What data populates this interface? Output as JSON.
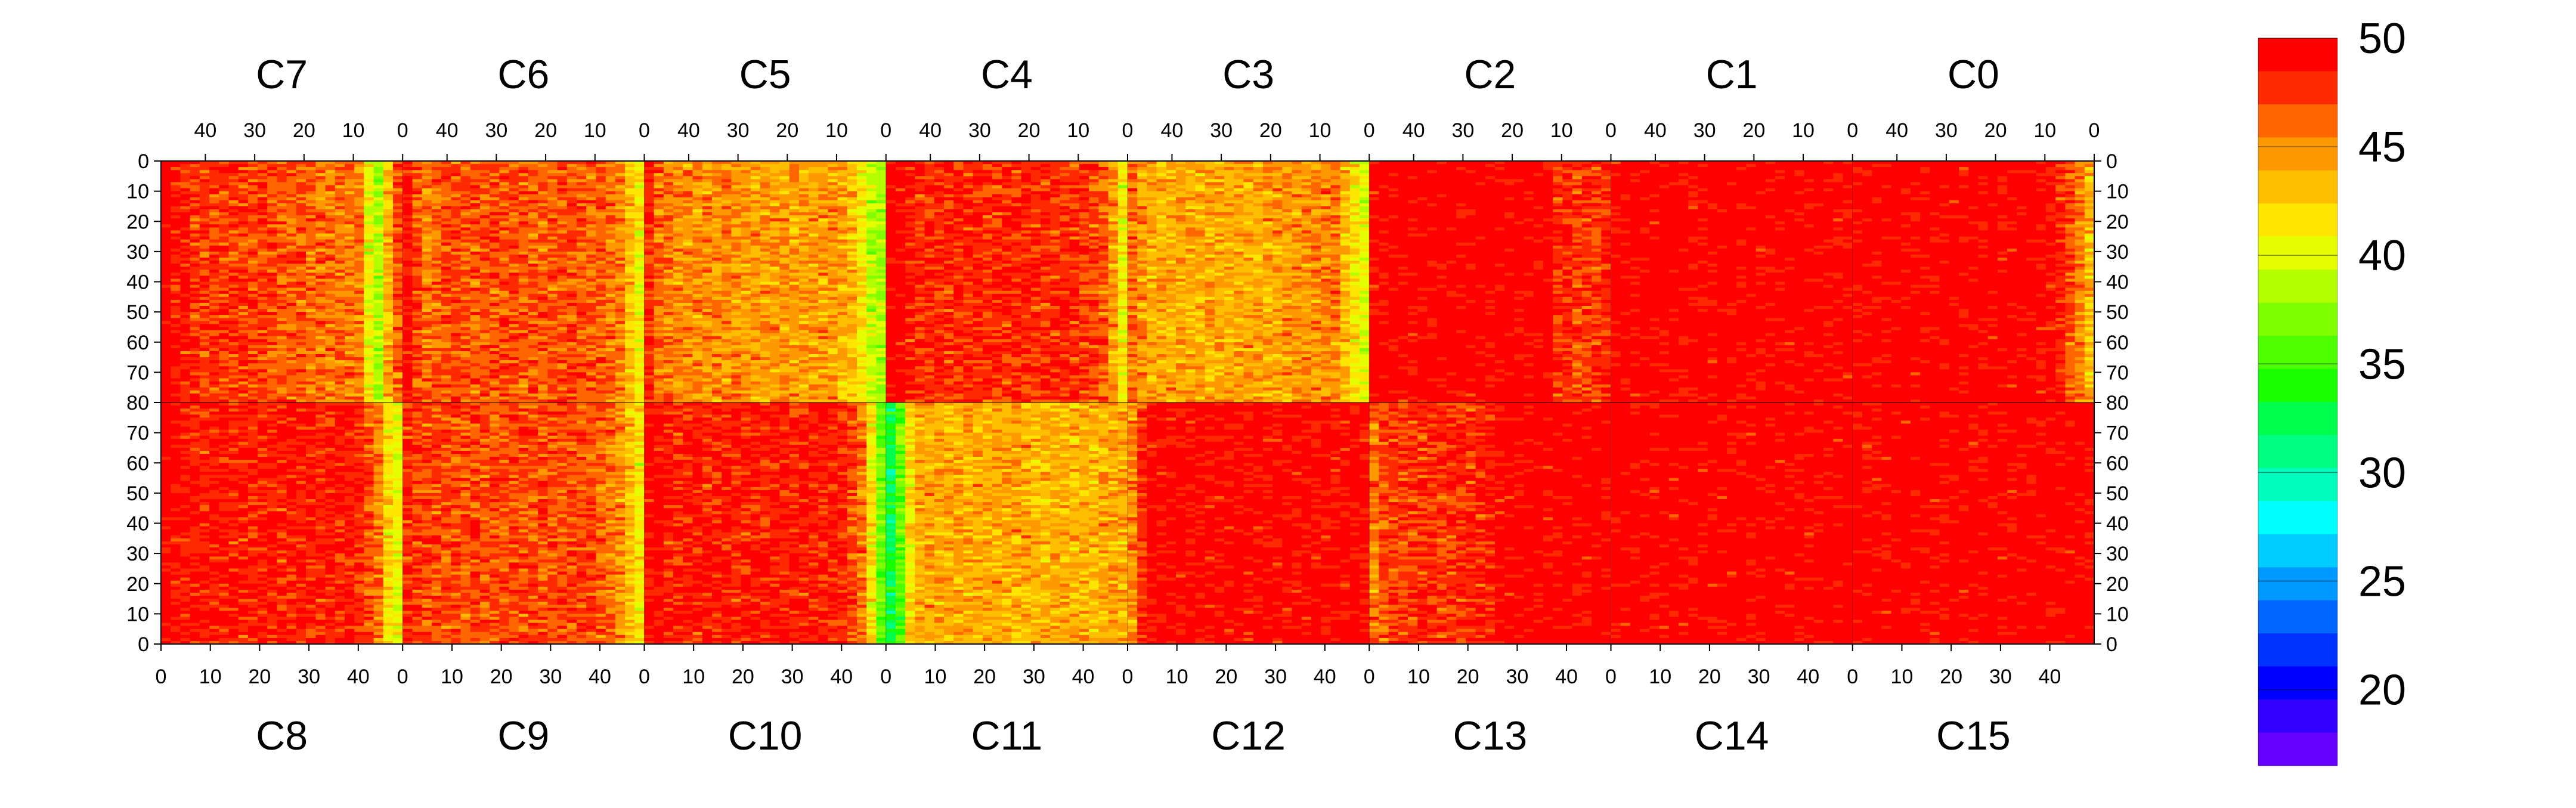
{
  "chart_data": {
    "type": "heatmap",
    "title": "",
    "xlabel": "",
    "ylabel": "",
    "grid": false,
    "legend": "colorbar-right",
    "top_row": {
      "modules": [
        "C7",
        "C6",
        "C5",
        "C4",
        "C3",
        "C2",
        "C1",
        "C0"
      ],
      "x_ticks": [
        "40",
        "30",
        "20",
        "10",
        "0"
      ],
      "y_ticks": [
        "0",
        "10",
        "20",
        "30",
        "40",
        "50",
        "60",
        "70",
        "80"
      ],
      "x_range": [
        49,
        0
      ],
      "y_range": [
        0,
        80
      ]
    },
    "bottom_row": {
      "modules": [
        "C8",
        "C9",
        "C10",
        "C11",
        "C12",
        "C13",
        "C14",
        "C15"
      ],
      "x_ticks": [
        "0",
        "10",
        "20",
        "30",
        "40"
      ],
      "y_ticks": [
        "80",
        "70",
        "60",
        "50",
        "40",
        "30",
        "20",
        "10",
        "0"
      ],
      "x_range": [
        0,
        49
      ],
      "y_range": [
        80,
        0
      ]
    },
    "colorbar": {
      "min": 16.5,
      "max": 50,
      "tick_labels": [
        "50",
        "45",
        "40",
        "35",
        "30",
        "25",
        "20"
      ],
      "colors": [
        "#ff0000",
        "#ff2a00",
        "#ff6600",
        "#ff9900",
        "#ffbf00",
        "#ffe600",
        "#e6ff00",
        "#b3ff00",
        "#80ff00",
        "#4dff00",
        "#19ff00",
        "#00ff4d",
        "#00ff80",
        "#00ffbf",
        "#00ffff",
        "#00ccff",
        "#0099ff",
        "#0066ff",
        "#0033ff",
        "#0000ff",
        "#3300ff",
        "#6600ff"
      ]
    },
    "column_sampling_step": 2,
    "module_fields": [
      {
        "name": "C7",
        "profile": [
          50,
          49,
          48.5,
          48,
          47.5,
          47.5,
          47.5,
          47.5,
          47.5,
          47,
          47,
          47,
          46.5,
          46.5,
          46.5,
          46,
          46,
          46,
          46,
          45.5,
          45.5,
          40.5,
          38.5,
          43.5,
          46.5
        ]
      },
      {
        "name": "C6",
        "profile": [
          49,
          47,
          46,
          46.5,
          47,
          47,
          46.5,
          46.5,
          46.5,
          47,
          47,
          47,
          46.5,
          46.5,
          46.5,
          46.5,
          47,
          47,
          46.5,
          46.5,
          46.5,
          46,
          45.5,
          43,
          41
        ]
      },
      {
        "name": "C5",
        "profile": [
          48,
          46,
          45.5,
          45,
          45,
          45,
          45,
          45,
          45,
          45,
          44.5,
          44.5,
          44.5,
          44.5,
          44.5,
          44.5,
          44.5,
          44.5,
          44.5,
          44.5,
          44,
          43.5,
          41.5,
          39,
          38
        ]
      },
      {
        "name": "C4",
        "profile": [
          50,
          50,
          48.5,
          48,
          48,
          48,
          48,
          48,
          48,
          48,
          48,
          48,
          48,
          48,
          48,
          48,
          48,
          48,
          48,
          48,
          47.5,
          47,
          46.5,
          44.5,
          41
        ]
      },
      {
        "name": "C3",
        "profile": [
          46,
          44.5,
          44,
          44,
          44,
          44,
          44,
          44,
          44,
          44,
          44,
          44,
          44,
          44,
          44.5,
          44.5,
          44.5,
          44.5,
          44.5,
          45,
          45,
          45.5,
          43.5,
          41.5,
          40
        ]
      },
      {
        "name": "C2",
        "profile": [
          50,
          50,
          50,
          50,
          50,
          50,
          50,
          50,
          50,
          50,
          50,
          50,
          50,
          50,
          50,
          50,
          50,
          50,
          50,
          48,
          48,
          47.5,
          47.5,
          47.5,
          48
        ]
      },
      {
        "name": "C1",
        "profile": [
          50,
          50,
          50,
          50,
          50,
          50,
          50,
          50,
          50,
          50,
          50,
          50,
          50,
          50,
          50,
          50,
          50,
          50,
          50,
          50,
          50,
          50,
          50,
          49.5,
          49.5
        ]
      },
      {
        "name": "C0",
        "profile": [
          50,
          50,
          50,
          50,
          50,
          50,
          50,
          50,
          50,
          50,
          50,
          50,
          50,
          50,
          50,
          50,
          50,
          50,
          50,
          49.5,
          49,
          48.5,
          47,
          45.5,
          43.5
        ]
      },
      {
        "name": "C8",
        "profile": [
          50,
          49.5,
          49,
          48.5,
          48.5,
          48.5,
          48.5,
          48.5,
          48.5,
          48.5,
          48.5,
          48.5,
          48.5,
          48.5,
          48.5,
          48.5,
          48.5,
          48.5,
          48.5,
          48.5,
          48,
          47,
          45.5,
          42,
          40.5
        ]
      },
      {
        "name": "C9",
        "profile": [
          48,
          47.5,
          47,
          47,
          47,
          47,
          47,
          47,
          47,
          47,
          47,
          47,
          47,
          47,
          47,
          47,
          47,
          47,
          47,
          47,
          46.5,
          46,
          45,
          43,
          41
        ]
      },
      {
        "name": "C10",
        "profile": [
          49.5,
          49,
          48.5,
          48.5,
          48.5,
          48.5,
          48.5,
          48.5,
          48.5,
          48.5,
          48.5,
          48.5,
          48.5,
          48.5,
          48.5,
          48.5,
          48.5,
          48.5,
          48.5,
          48.5,
          48,
          47,
          45.5,
          41.5,
          36.5
        ]
      },
      {
        "name": "C11",
        "profile": [
          32.5,
          36,
          42,
          44,
          44,
          44,
          44,
          44,
          44,
          44,
          44,
          44,
          44,
          44,
          44,
          43.5,
          43.5,
          43.5,
          43.5,
          43.5,
          43.5,
          43.5,
          44,
          44,
          44
        ]
      },
      {
        "name": "C12",
        "profile": [
          45,
          48,
          49.5,
          49.5,
          49.5,
          49.5,
          49.5,
          49.5,
          49.5,
          49.5,
          49.5,
          49.5,
          49.5,
          49.5,
          49.5,
          49.5,
          49.5,
          49.5,
          49.5,
          49.5,
          49.5,
          49.5,
          49.5,
          49.5,
          49.5
        ]
      },
      {
        "name": "C13",
        "profile": [
          45.5,
          47,
          47.5,
          47.5,
          47.5,
          48,
          48,
          48,
          48,
          48,
          48,
          48,
          48.5,
          49.5,
          50,
          50,
          50,
          50,
          50,
          50,
          50,
          50,
          50,
          50,
          50
        ]
      },
      {
        "name": "C14",
        "profile": [
          50,
          50,
          50,
          50,
          50,
          50,
          50,
          50,
          50,
          50,
          50,
          50,
          50,
          50,
          50,
          50,
          50,
          50,
          50,
          50,
          50,
          50,
          50,
          50,
          50
        ]
      },
      {
        "name": "C15",
        "profile": [
          50,
          50,
          50,
          50,
          50,
          50,
          50,
          50,
          50,
          50,
          50,
          50,
          50,
          50,
          50,
          50,
          50,
          50,
          50,
          50,
          50,
          50,
          50,
          50,
          50
        ]
      }
    ]
  }
}
